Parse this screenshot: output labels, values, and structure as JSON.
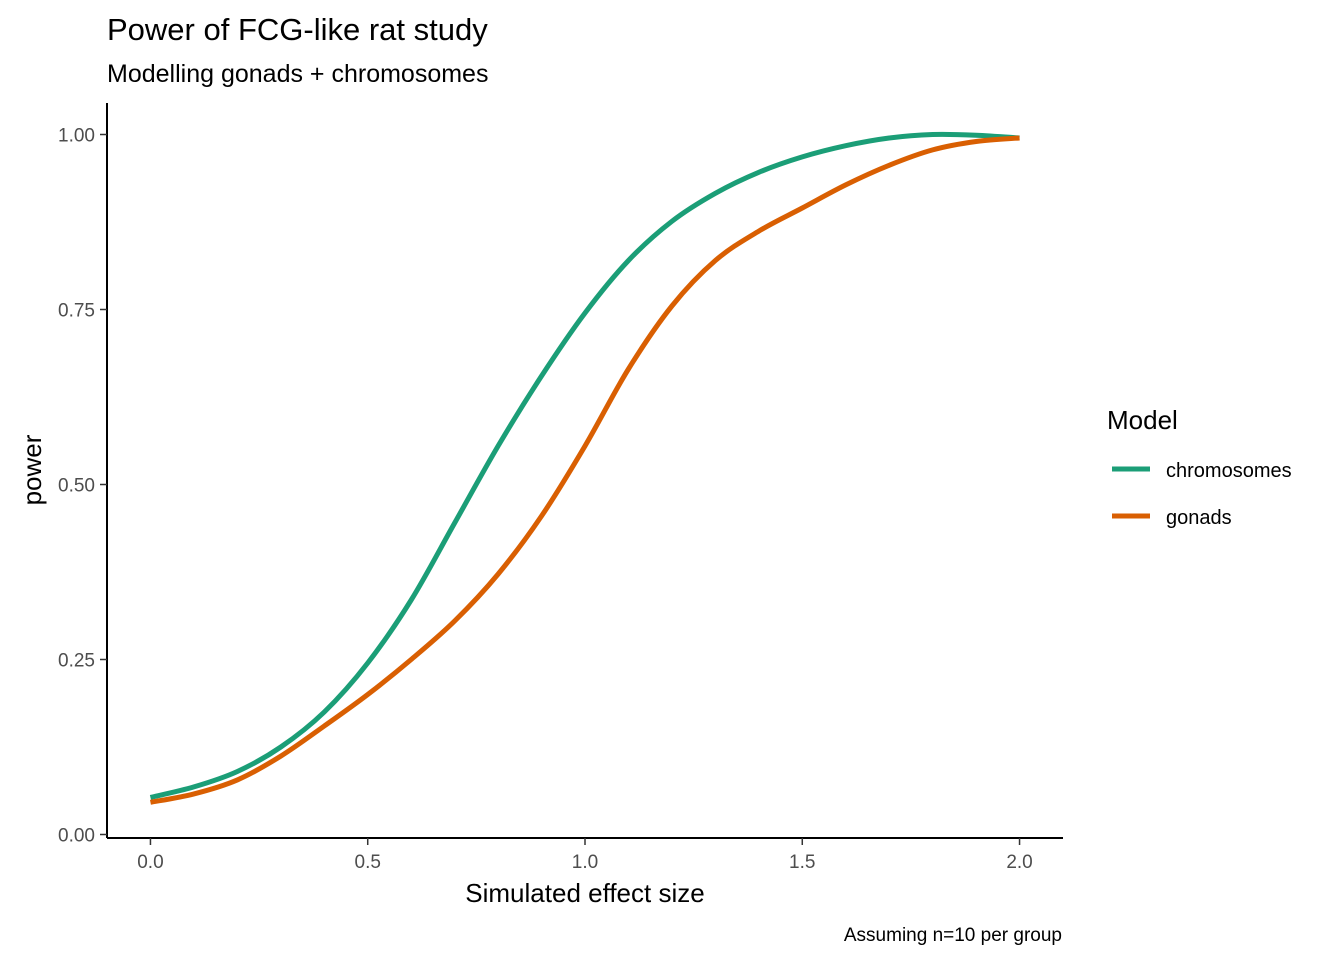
{
  "chart_data": {
    "type": "line",
    "title": "Power of FCG-like rat study",
    "subtitle": "Modelling gonads + chromosomes",
    "xlabel": "Simulated effect size",
    "ylabel": "power",
    "caption": "Assuming n=10 per group",
    "xlim": [
      -0.1,
      2.1
    ],
    "ylim": [
      -0.005,
      1.045
    ],
    "x_ticks": [
      0.0,
      0.5,
      1.0,
      1.5,
      2.0
    ],
    "x_tick_labels": [
      "0.0",
      "0.5",
      "1.0",
      "1.5",
      "2.0"
    ],
    "y_ticks": [
      0.0,
      0.25,
      0.5,
      0.75,
      1.0
    ],
    "y_tick_labels": [
      "0.00",
      "0.25",
      "0.50",
      "0.75",
      "1.00"
    ],
    "grid": false,
    "legend": {
      "title": "Model",
      "placement": "right"
    },
    "series": [
      {
        "name": "chromosomes",
        "color": "#1B9E77",
        "x": [
          0.0,
          0.1,
          0.2,
          0.3,
          0.4,
          0.5,
          0.6,
          0.7,
          0.8,
          0.9,
          1.0,
          1.1,
          1.2,
          1.3,
          1.4,
          1.5,
          1.6,
          1.7,
          1.8,
          1.9,
          2.0
        ],
        "y": [
          0.053,
          0.068,
          0.09,
          0.125,
          0.175,
          0.245,
          0.335,
          0.445,
          0.555,
          0.655,
          0.745,
          0.82,
          0.876,
          0.916,
          0.946,
          0.968,
          0.984,
          0.995,
          1.0,
          0.999,
          0.995
        ]
      },
      {
        "name": "gonads",
        "color": "#D95F02",
        "x": [
          0.0,
          0.1,
          0.2,
          0.3,
          0.4,
          0.5,
          0.6,
          0.7,
          0.8,
          0.9,
          1.0,
          1.1,
          1.2,
          1.3,
          1.4,
          1.5,
          1.6,
          1.7,
          1.8,
          1.9,
          2.0
        ],
        "y": [
          0.046,
          0.058,
          0.078,
          0.112,
          0.155,
          0.2,
          0.25,
          0.305,
          0.372,
          0.455,
          0.555,
          0.665,
          0.755,
          0.82,
          0.862,
          0.895,
          0.928,
          0.956,
          0.978,
          0.99,
          0.995
        ]
      }
    ]
  }
}
